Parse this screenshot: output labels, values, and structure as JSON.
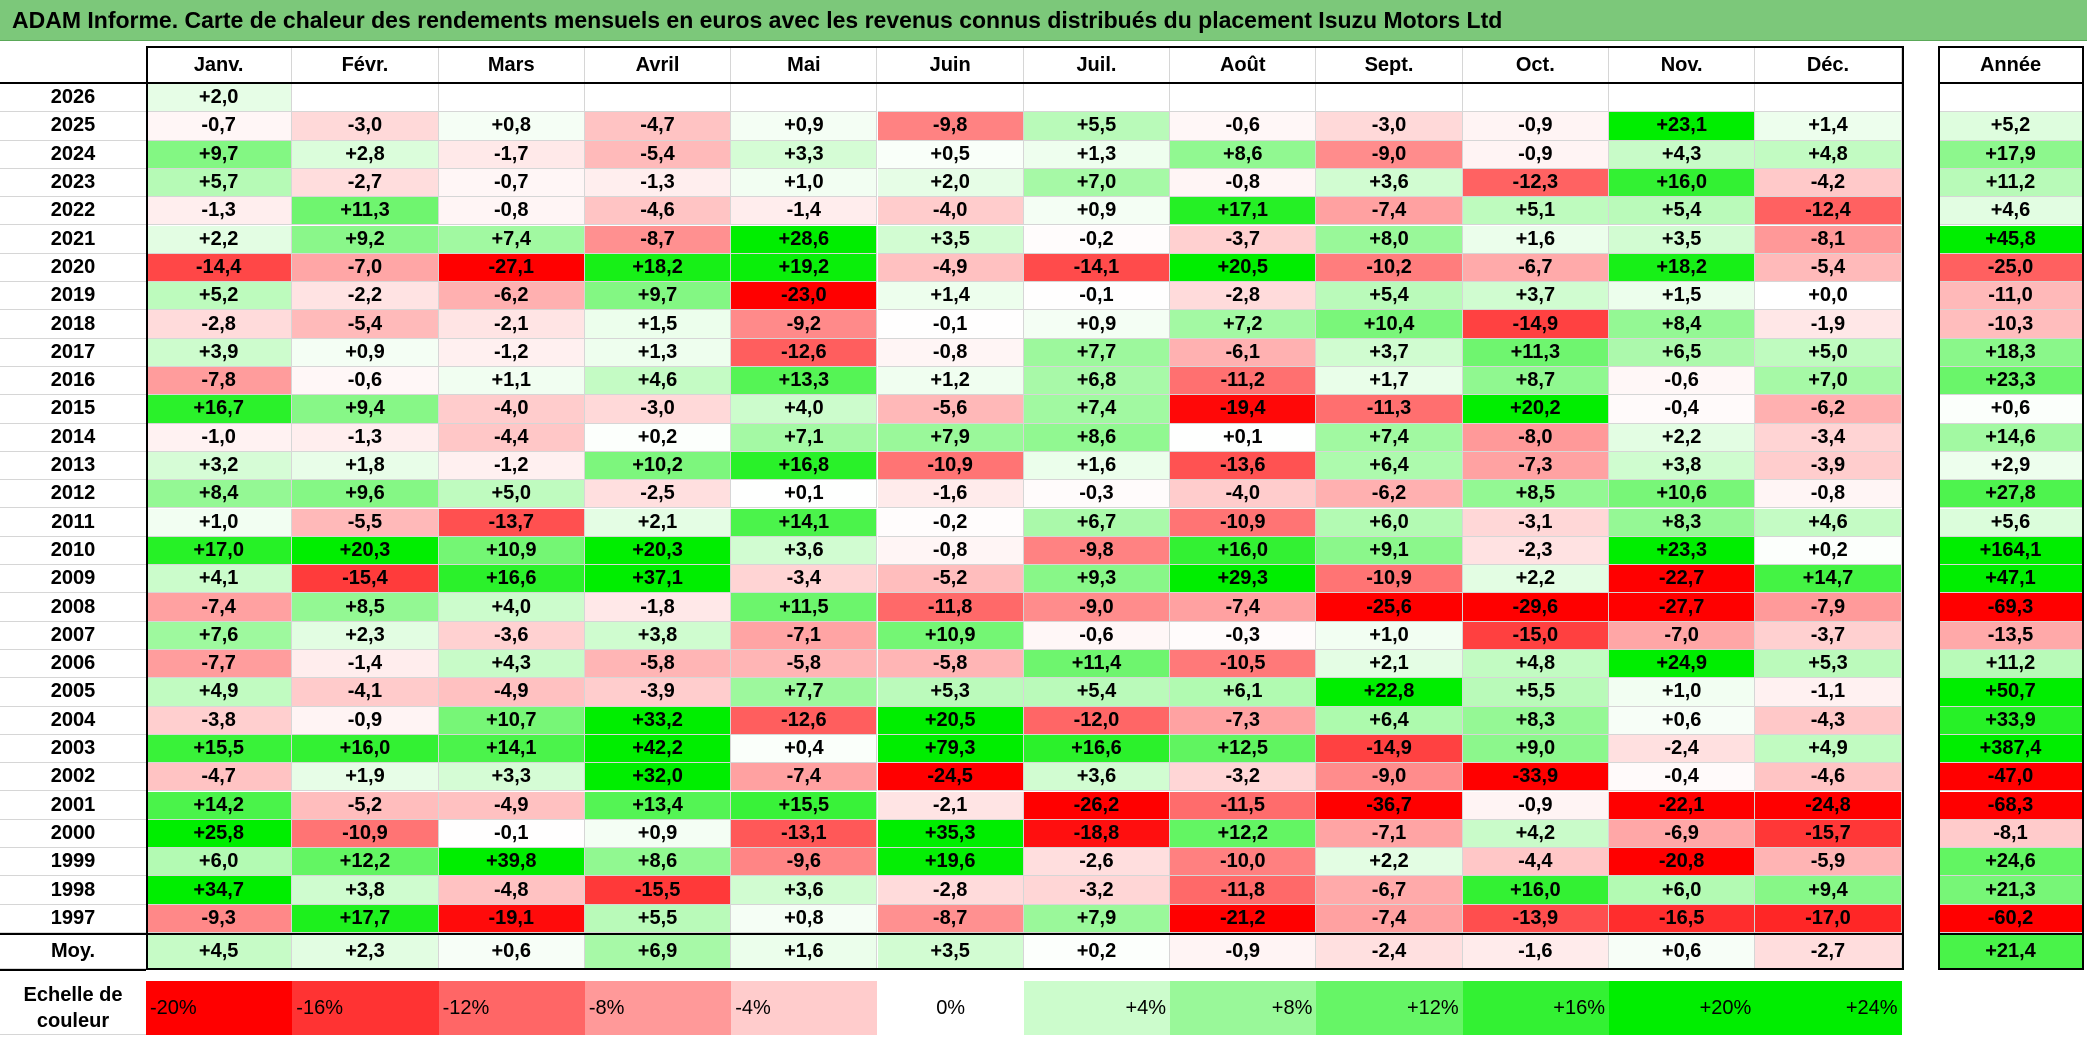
{
  "title": "ADAM Informe. Carte de chaleur des rendements mensuels en euros avec les revenus connus distribués du placement Isuzu Motors Ltd",
  "chart_data": {
    "type": "heatmap",
    "columns": [
      "Janv.",
      "Févr.",
      "Mars",
      "Avril",
      "Mai",
      "Juin",
      "Juil.",
      "Août",
      "Sept.",
      "Oct.",
      "Nov.",
      "Déc."
    ],
    "year_header": "Année",
    "rows": [
      {
        "label": "2026",
        "values": [
          2.0,
          null,
          null,
          null,
          null,
          null,
          null,
          null,
          null,
          null,
          null,
          null
        ],
        "year": null
      },
      {
        "label": "2025",
        "values": [
          -0.7,
          -3.0,
          0.8,
          -4.7,
          0.9,
          -9.8,
          5.5,
          -0.6,
          -3.0,
          -0.9,
          23.1,
          1.4
        ],
        "year": 5.2
      },
      {
        "label": "2024",
        "values": [
          9.7,
          2.8,
          -1.7,
          -5.4,
          3.3,
          0.5,
          1.3,
          8.6,
          -9.0,
          -0.9,
          4.3,
          4.8
        ],
        "year": 17.9
      },
      {
        "label": "2023",
        "values": [
          5.7,
          -2.7,
          -0.7,
          -1.3,
          1.0,
          2.0,
          7.0,
          -0.8,
          3.6,
          -12.3,
          16.0,
          -4.2
        ],
        "year": 11.2
      },
      {
        "label": "2022",
        "values": [
          -1.3,
          11.3,
          -0.8,
          -4.6,
          -1.4,
          -4.0,
          0.9,
          17.1,
          -7.4,
          5.1,
          5.4,
          -12.4
        ],
        "year": 4.6
      },
      {
        "label": "2021",
        "values": [
          2.2,
          9.2,
          7.4,
          -8.7,
          28.6,
          3.5,
          -0.2,
          -3.7,
          8.0,
          1.6,
          3.5,
          -8.1
        ],
        "year": 45.8
      },
      {
        "label": "2020",
        "values": [
          -14.4,
          -7.0,
          -27.1,
          18.2,
          19.2,
          -4.9,
          -14.1,
          20.5,
          -10.2,
          -6.7,
          18.2,
          -5.4
        ],
        "year": -25.0
      },
      {
        "label": "2019",
        "values": [
          5.2,
          -2.2,
          -6.2,
          9.7,
          -23.0,
          1.4,
          -0.1,
          -2.8,
          5.4,
          3.7,
          1.5,
          0.0
        ],
        "year": -11.0
      },
      {
        "label": "2018",
        "values": [
          -2.8,
          -5.4,
          -2.1,
          1.5,
          -9.2,
          -0.1,
          0.9,
          7.2,
          10.4,
          -14.9,
          8.4,
          -1.9
        ],
        "year": -10.3
      },
      {
        "label": "2017",
        "values": [
          3.9,
          0.9,
          -1.2,
          1.3,
          -12.6,
          -0.8,
          7.7,
          -6.1,
          3.7,
          11.3,
          6.5,
          5.0
        ],
        "year": 18.3
      },
      {
        "label": "2016",
        "values": [
          -7.8,
          -0.6,
          1.1,
          4.6,
          13.3,
          1.2,
          6.8,
          -11.2,
          1.7,
          8.7,
          -0.6,
          7.0
        ],
        "year": 23.3
      },
      {
        "label": "2015",
        "values": [
          16.7,
          9.4,
          -4.0,
          -3.0,
          4.0,
          -5.6,
          7.4,
          -19.4,
          -11.3,
          20.2,
          -0.4,
          -6.2
        ],
        "year": 0.6
      },
      {
        "label": "2014",
        "values": [
          -1.0,
          -1.3,
          -4.4,
          0.2,
          7.1,
          7.9,
          8.6,
          0.1,
          7.4,
          -8.0,
          2.2,
          -3.4
        ],
        "year": 14.6
      },
      {
        "label": "2013",
        "values": [
          3.2,
          1.8,
          -1.2,
          10.2,
          16.8,
          -10.9,
          1.6,
          -13.6,
          6.4,
          -7.3,
          3.8,
          -3.9
        ],
        "year": 2.9
      },
      {
        "label": "2012",
        "values": [
          8.4,
          9.6,
          5.0,
          -2.5,
          0.1,
          -1.6,
          -0.3,
          -4.0,
          -6.2,
          8.5,
          10.6,
          -0.8
        ],
        "year": 27.8
      },
      {
        "label": "2011",
        "values": [
          1.0,
          -5.5,
          -13.7,
          2.1,
          14.1,
          -0.2,
          6.7,
          -10.9,
          6.0,
          -3.1,
          8.3,
          4.6
        ],
        "year": 5.6
      },
      {
        "label": "2010",
        "values": [
          17.0,
          20.3,
          10.9,
          20.3,
          3.6,
          -0.8,
          -9.8,
          16.0,
          9.1,
          -2.3,
          23.3,
          0.2
        ],
        "year": 164.1
      },
      {
        "label": "2009",
        "values": [
          4.1,
          -15.4,
          16.6,
          37.1,
          -3.4,
          -5.2,
          9.3,
          29.3,
          -10.9,
          2.2,
          -22.7,
          14.7
        ],
        "year": 47.1
      },
      {
        "label": "2008",
        "values": [
          -7.4,
          8.5,
          4.0,
          -1.8,
          11.5,
          -11.8,
          -9.0,
          -7.4,
          -25.6,
          -29.6,
          -27.7,
          -7.9
        ],
        "year": -69.3
      },
      {
        "label": "2007",
        "values": [
          7.6,
          2.3,
          -3.6,
          3.8,
          -7.1,
          10.9,
          -0.6,
          -0.3,
          1.0,
          -15.0,
          -7.0,
          -3.7
        ],
        "year": -13.5
      },
      {
        "label": "2006",
        "values": [
          -7.7,
          -1.4,
          4.3,
          -5.8,
          -5.8,
          -5.8,
          11.4,
          -10.5,
          2.1,
          4.8,
          24.9,
          5.3
        ],
        "year": 11.2
      },
      {
        "label": "2005",
        "values": [
          4.9,
          -4.1,
          -4.9,
          -3.9,
          7.7,
          5.3,
          5.4,
          6.1,
          22.8,
          5.5,
          1.0,
          -1.1
        ],
        "year": 50.7
      },
      {
        "label": "2004",
        "values": [
          -3.8,
          -0.9,
          10.7,
          33.2,
          -12.6,
          20.5,
          -12.0,
          -7.3,
          6.4,
          8.3,
          0.6,
          -4.3
        ],
        "year": 33.9
      },
      {
        "label": "2003",
        "values": [
          15.5,
          16.0,
          14.1,
          42.2,
          0.4,
          79.3,
          16.6,
          12.5,
          -14.9,
          9.0,
          -2.4,
          4.9
        ],
        "year": 387.4
      },
      {
        "label": "2002",
        "values": [
          -4.7,
          1.9,
          3.3,
          32.0,
          -7.4,
          -24.5,
          3.6,
          -3.2,
          -9.0,
          -33.9,
          -0.4,
          -4.6
        ],
        "year": -47.0
      },
      {
        "label": "2001",
        "values": [
          14.2,
          -5.2,
          -4.9,
          13.4,
          15.5,
          -2.1,
          -26.2,
          -11.5,
          -36.7,
          -0.9,
          -22.1,
          -24.8
        ],
        "year": -68.3
      },
      {
        "label": "2000",
        "values": [
          25.8,
          -10.9,
          -0.1,
          0.9,
          -13.1,
          35.3,
          -18.8,
          12.2,
          -7.1,
          4.2,
          -6.9,
          -15.7
        ],
        "year": -8.1
      },
      {
        "label": "1999",
        "values": [
          6.0,
          12.2,
          39.8,
          8.6,
          -9.6,
          19.6,
          -2.6,
          -10.0,
          2.2,
          -4.4,
          -20.8,
          -5.9
        ],
        "year": 24.6
      },
      {
        "label": "1998",
        "values": [
          34.7,
          3.8,
          -4.8,
          -15.5,
          3.6,
          -2.8,
          -3.2,
          -11.8,
          -6.7,
          16.0,
          6.0,
          9.4
        ],
        "year": 21.3
      },
      {
        "label": "1997",
        "values": [
          -9.3,
          17.7,
          -19.1,
          5.5,
          0.8,
          -8.7,
          7.9,
          -21.2,
          -7.4,
          -13.9,
          -16.5,
          -17.0
        ],
        "year": -60.2
      }
    ],
    "average": {
      "label": "Moy.",
      "values": [
        4.5,
        2.3,
        0.6,
        6.9,
        1.6,
        3.5,
        0.2,
        -0.9,
        -2.4,
        -1.6,
        0.6,
        -2.7
      ],
      "year": 21.4
    },
    "color_scale": {
      "label": "Echelle de couleur",
      "stops": [
        "-20%",
        "-16%",
        "-12%",
        "-8%",
        "-4%",
        "0%",
        "+4%",
        "+8%",
        "+12%",
        "+16%",
        "+20%",
        "+24%"
      ],
      "stop_values": [
        -20,
        -16,
        -12,
        -8,
        -4,
        0,
        4,
        8,
        12,
        16,
        20,
        24
      ],
      "negative_color": "#ff0000",
      "positive_color": "#00ee00",
      "neutral_color": "#ffffff"
    }
  }
}
